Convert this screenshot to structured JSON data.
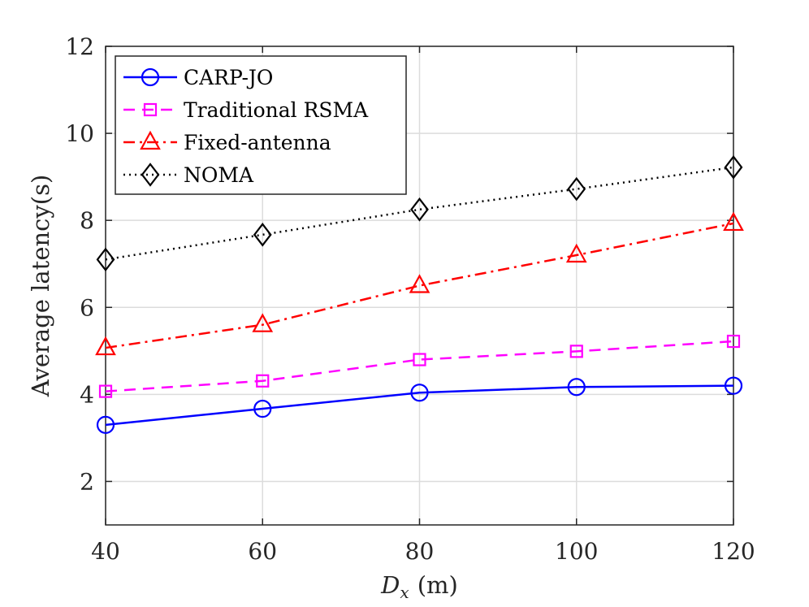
{
  "chart_data": {
    "type": "line",
    "x": [
      40,
      60,
      80,
      100,
      120
    ],
    "series": [
      {
        "name": "CARP-JO",
        "values": [
          3.3,
          3.67,
          4.04,
          4.17,
          4.2
        ],
        "color": "#0000ff",
        "dash": "solid",
        "marker": "circle"
      },
      {
        "name": "Traditional RSMA",
        "values": [
          4.07,
          4.31,
          4.8,
          4.99,
          5.22
        ],
        "color": "#ff00ff",
        "dash": "dashed",
        "marker": "square"
      },
      {
        "name": "Fixed-antenna",
        "values": [
          5.07,
          5.6,
          6.5,
          7.2,
          7.93
        ],
        "color": "#ff0000",
        "dash": "dashdot",
        "marker": "triangle"
      },
      {
        "name": "NOMA",
        "values": [
          7.1,
          7.67,
          8.25,
          8.72,
          9.22
        ],
        "color": "#000000",
        "dash": "dotted",
        "marker": "diamond"
      }
    ],
    "xlabel_main": "D",
    "xlabel_sub": "x",
    "xlabel_unit": "(m)",
    "ylabel": "Average latency(s)",
    "xlim": [
      40,
      120
    ],
    "ylim": [
      1,
      12
    ],
    "xticks": [
      40,
      60,
      80,
      100,
      120
    ],
    "yticks": [
      2,
      4,
      6,
      8,
      10,
      12
    ],
    "grid": true,
    "legend_position": "top-left"
  }
}
